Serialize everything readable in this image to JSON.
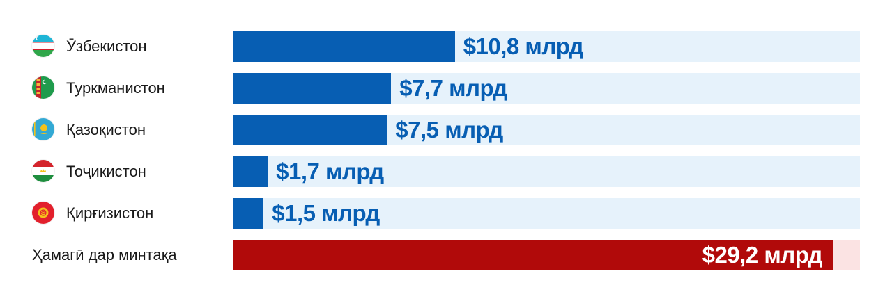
{
  "chart_data": {
    "type": "bar",
    "orientation": "horizontal",
    "categories": [
      "Ӯзбекистон",
      "Туркманистон",
      "Қазоқистон",
      "Тоҷикистон",
      "Қирғизистон",
      "Ҳамагӣ дар минтақа"
    ],
    "values": [
      10.8,
      7.7,
      7.5,
      1.7,
      1.5,
      29.2
    ],
    "value_labels": [
      "$10,8 млрд",
      "$7,7 млрд",
      "$7,5 млрд",
      "$1,7 млрд",
      "$1,5 млрд",
      "$29,2 млрд"
    ],
    "flags": [
      "uzbekistan-flag-icon",
      "turkmenistan-flag-icon",
      "kazakhstan-flag-icon",
      "tajikistan-flag-icon",
      "kyrgyzstan-flag-icon",
      null
    ],
    "xlim": [
      0,
      30.5
    ],
    "grid": false,
    "colors": {
      "bar": "#075eb3",
      "track": "#e6f2fb",
      "total_bar": "#b10a0a",
      "total_track": "#fbe3e3",
      "value_text": "#075eb3",
      "total_value_text": "#ffffff"
    }
  }
}
